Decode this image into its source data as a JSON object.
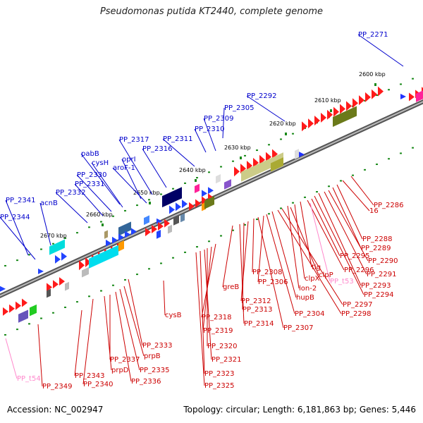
{
  "title": "Pseudomonas putida KT2440, complete genome",
  "footer": {
    "accession": "Accession: NC_002947",
    "summary": "Topology: circular; Length: 6,181,863 bp; Genes: 5,446"
  },
  "colors": {
    "forward_label": "#0000cc",
    "reverse_label": "#cc0000",
    "rna_label": "#ff88cc",
    "backbone": "#777777",
    "scale_dot": "#1a8a1a"
  },
  "ticks": [
    "2600 kbp",
    "2610 kbp",
    "2620 kbp",
    "2630 kbp",
    "2640 kbp",
    "2650 kbp",
    "2660 kbp",
    "2670 kbp"
  ],
  "labels_forward": [
    "PP_2271",
    "PP_2292",
    "PP_2305",
    "PP_2309",
    "PP_2310",
    "PP_2311",
    "PP_2316",
    "PP_2317",
    "oprI",
    "aroF-1",
    "pabB",
    "cysH",
    "PP_2330",
    "PP_2331",
    "PP_2332",
    "acnB",
    "PP_2341",
    "PP_2344"
  ],
  "labels_reverse": [
    "PP_2286",
    "16",
    "PP_2288",
    "PP_2289",
    "PP_2290",
    "PP_2291",
    "PP_2293",
    "PP_2294",
    "PP_2295",
    "PP_2296",
    "tig",
    "clpX",
    "lon-2",
    "clpP",
    "PP_2297",
    "PP_2298",
    "hupB",
    "PP_2304",
    "PP_2306",
    "PP_2307",
    "PP_2308",
    "PP_2312",
    "PP_2313",
    "PP_2314",
    "greB",
    "PP_2318",
    "PP_2319",
    "PP_2320",
    "PP_2321",
    "PP_2323",
    "PP_2325",
    "cysB",
    "PP_2333",
    "prpB",
    "PP_2335",
    "PP_2336",
    "PP_2337",
    "prpD",
    "PP_2340",
    "PP_2343",
    "PP_2349"
  ],
  "labels_rna": [
    "PP_t53",
    "PP_t54"
  ]
}
